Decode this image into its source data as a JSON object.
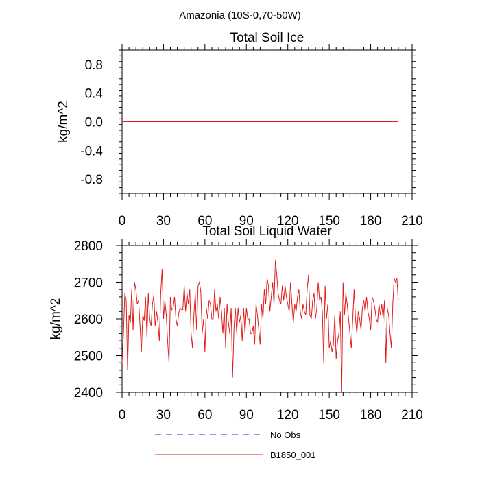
{
  "figure": {
    "suptitle": "Amazonia (10S-0,70-50W)",
    "legend": [
      {
        "label": "No Obs",
        "color": "#3333cc",
        "style": "dashed"
      },
      {
        "label": "B1850_001",
        "color": "#e11b1b",
        "style": "solid"
      }
    ]
  },
  "chart_data": [
    {
      "type": "line",
      "title": "Total Soil Ice",
      "xlabel": "",
      "ylabel": "kg/m^2",
      "xlim": [
        0,
        210
      ],
      "ylim": [
        -1.0,
        1.0
      ],
      "xticks": [
        0,
        30,
        60,
        90,
        120,
        150,
        180,
        210
      ],
      "xtick_labels": [
        "0",
        "30",
        "60",
        "90",
        "120",
        "150",
        "180",
        "210"
      ],
      "yticks": [
        0.8,
        0.4,
        0.0,
        -0.4,
        -0.8
      ],
      "ytick_labels": [
        "0.8",
        "0.4",
        "0.0",
        "-0.4",
        "-0.8"
      ],
      "series": [
        {
          "name": "B1850_001",
          "color": "#e11b1b",
          "x": [
            0,
            200
          ],
          "values": [
            0.0,
            0.0
          ]
        }
      ]
    },
    {
      "type": "line",
      "title": "Total Soil Liquid Water",
      "xlabel": "",
      "ylabel": "kg/m^2",
      "xlim": [
        0,
        210
      ],
      "ylim": [
        2400,
        2800
      ],
      "xticks": [
        0,
        30,
        60,
        90,
        120,
        150,
        180,
        210
      ],
      "xtick_labels": [
        "0",
        "30",
        "60",
        "90",
        "120",
        "150",
        "180",
        "210"
      ],
      "yticks": [
        2800,
        2700,
        2600,
        2500,
        2400
      ],
      "ytick_labels": [
        "2800",
        "2700",
        "2600",
        "2500",
        "2400"
      ],
      "series": [
        {
          "name": "B1850_001",
          "color": "#e11b1b",
          "x_start": 0,
          "x_step": 1,
          "values": [
            2480,
            2560,
            2670,
            2650,
            2460,
            2610,
            2590,
            2680,
            2570,
            2700,
            2680,
            2640,
            2650,
            2580,
            2510,
            2610,
            2595,
            2660,
            2550,
            2670,
            2600,
            2580,
            2640,
            2665,
            2580,
            2620,
            2590,
            2540,
            2670,
            2735,
            2600,
            2650,
            2610,
            2540,
            2480,
            2660,
            2625,
            2630,
            2660,
            2600,
            2580,
            2615,
            2630,
            2625,
            2625,
            2690,
            2620,
            2670,
            2640,
            2680,
            2560,
            2520,
            2610,
            2670,
            2570,
            2690,
            2700,
            2675,
            2560,
            2600,
            2510,
            2630,
            2600,
            2650,
            2640,
            2600,
            2600,
            2680,
            2620,
            2640,
            2600,
            2660,
            2620,
            2560,
            2630,
            2520,
            2640,
            2590,
            2560,
            2630,
            2440,
            2570,
            2630,
            2560,
            2630,
            2590,
            2610,
            2540,
            2630,
            2560,
            2630,
            2600,
            2600,
            2560,
            2560,
            2580,
            2530,
            2640,
            2610,
            2570,
            2530,
            2640,
            2600,
            2680,
            2640,
            2710,
            2690,
            2620,
            2660,
            2700,
            2640,
            2760,
            2720,
            2670,
            2650,
            2640,
            2690,
            2650,
            2690,
            2660,
            2640,
            2620,
            2700,
            2640,
            2590,
            2640,
            2620,
            2660,
            2680,
            2620,
            2600,
            2640,
            2620,
            2610,
            2680,
            2720,
            2610,
            2600,
            2650,
            2670,
            2600,
            2630,
            2700,
            2650,
            2660,
            2620,
            2480,
            2690,
            2600,
            2640,
            2520,
            2540,
            2510,
            2530,
            2610,
            2490,
            2540,
            2560,
            2620,
            2400,
            2700,
            2610,
            2670,
            2640,
            2600,
            2560,
            2520,
            2600,
            2680,
            2600,
            2560,
            2620,
            2600,
            2570,
            2630,
            2650,
            2620,
            2660,
            2620,
            2600,
            2570,
            2660,
            2650,
            2630,
            2600,
            2590,
            2640,
            2610,
            2640,
            2600,
            2650,
            2480,
            2630,
            2610,
            2560,
            2520,
            2640,
            2710,
            2700,
            2710,
            2650
          ]
        }
      ]
    }
  ]
}
